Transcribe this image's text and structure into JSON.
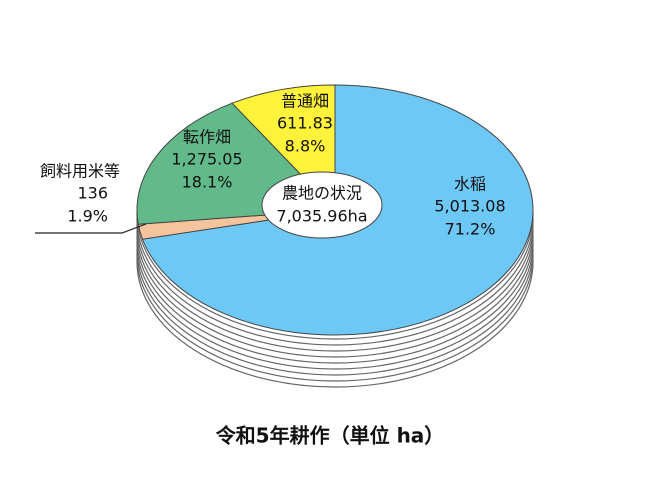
{
  "chart_data": {
    "type": "pie3d",
    "title": "令和5年耕作（単位 ha）",
    "categories": [
      "水稲",
      "飼料用米等",
      "転作畑",
      "普通畑"
    ],
    "values": [
      5013.08,
      136,
      1275.05,
      611.83
    ],
    "value_labels": [
      "5,013.08",
      "136",
      "1,275.05",
      "611.83"
    ],
    "percents": [
      71.2,
      1.9,
      18.1,
      8.8
    ],
    "percent_labels": [
      "71.2%",
      "1.9%",
      "18.1%",
      "8.8%"
    ],
    "colors": [
      "#6ec8f6",
      "#f6c49c",
      "#62b98a",
      "#fff23a"
    ],
    "center": {
      "title": "農地の状況",
      "total": 7035.96,
      "total_label": "7,035.96ha"
    }
  }
}
